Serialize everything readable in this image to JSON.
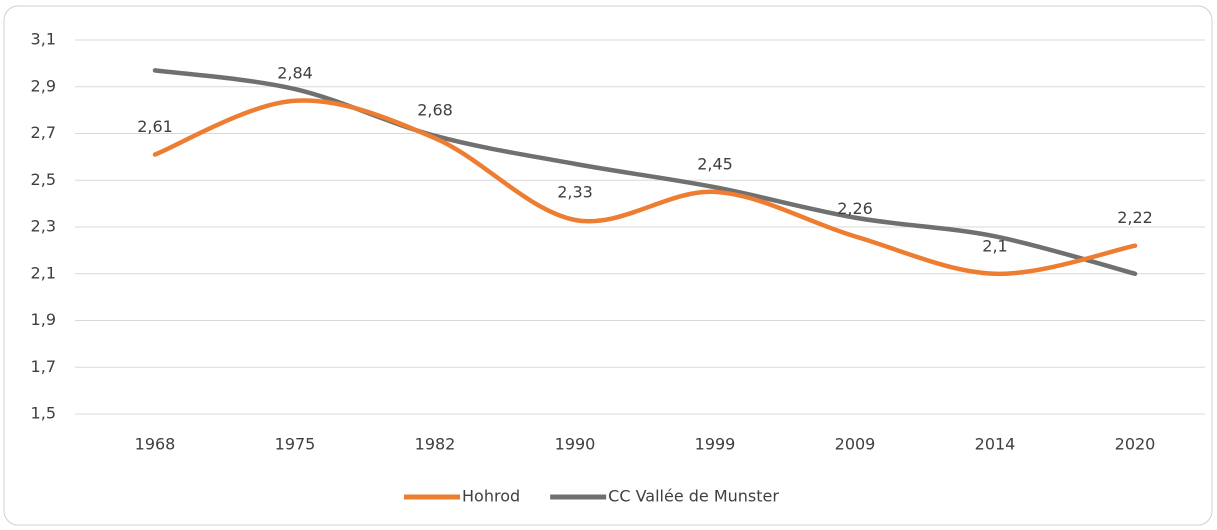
{
  "chart_data": {
    "type": "line",
    "categories": [
      "1968",
      "1975",
      "1982",
      "1990",
      "1999",
      "2009",
      "2014",
      "2020"
    ],
    "series": [
      {
        "name": "Hohrod",
        "color": "#ed7d31",
        "values": [
          2.61,
          2.84,
          2.68,
          2.33,
          2.45,
          2.26,
          2.1,
          2.22
        ],
        "value_labels": [
          "2,61",
          "2,84",
          "2,68",
          "2,33",
          "2,45",
          "2,26",
          "2,1",
          "2,22"
        ]
      },
      {
        "name": "CC Vallée de Munster",
        "color": "#707070",
        "values": [
          2.97,
          2.89,
          2.69,
          2.57,
          2.47,
          2.34,
          2.26,
          2.1
        ]
      }
    ],
    "ylim": [
      1.5,
      3.1
    ],
    "yticks": [
      {
        "value": 1.5,
        "label": "1,5"
      },
      {
        "value": 1.7,
        "label": "1,7"
      },
      {
        "value": 1.9,
        "label": "1,9"
      },
      {
        "value": 2.1,
        "label": "2,1"
      },
      {
        "value": 2.3,
        "label": "2,3"
      },
      {
        "value": 2.5,
        "label": "2,5"
      },
      {
        "value": 2.7,
        "label": "2,7"
      },
      {
        "value": 2.9,
        "label": "2,9"
      },
      {
        "value": 3.1,
        "label": "3,1"
      }
    ],
    "grid": true,
    "legend": "bottom"
  }
}
